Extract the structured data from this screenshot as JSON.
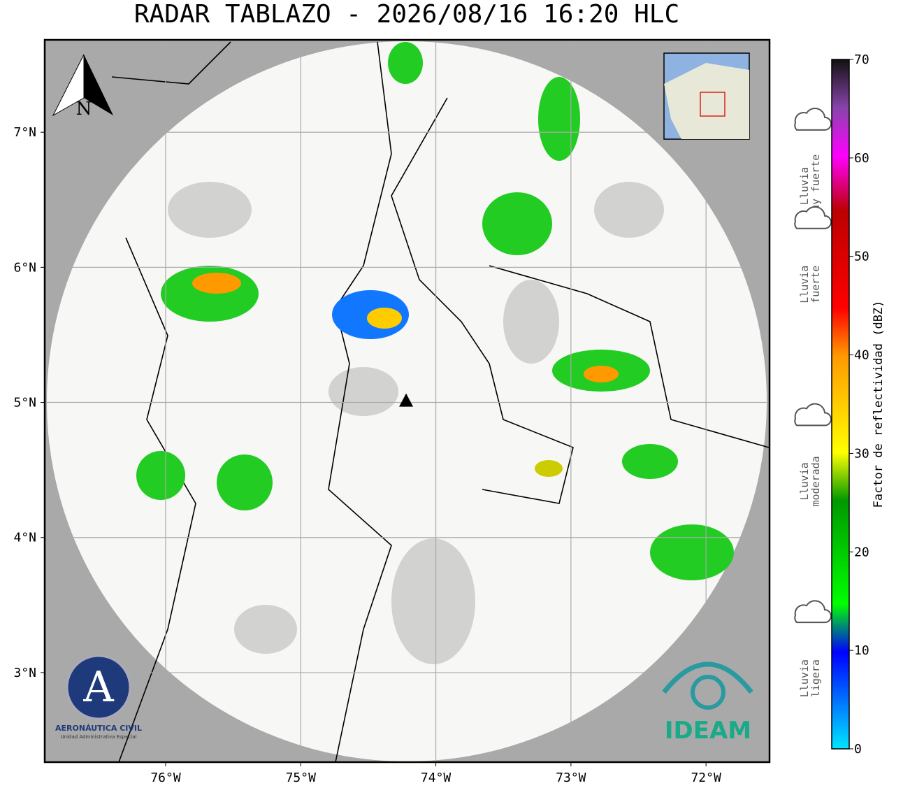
{
  "map": {
    "title": "RADAR TABLAZO - 2026/08/16 16:20 HLC",
    "xlim": [
      -76.895,
      -71.53
    ],
    "ylim": [
      2.337,
      7.684
    ],
    "lon_ticks": [
      {
        "value": -76,
        "label": "76°W"
      },
      {
        "value": -75,
        "label": "75°W"
      },
      {
        "value": -74,
        "label": "74°W"
      },
      {
        "value": -73,
        "label": "73°W"
      },
      {
        "value": -72,
        "label": "72°W"
      }
    ],
    "lat_ticks": [
      {
        "value": 7,
        "label": "7°N"
      },
      {
        "value": 6,
        "label": "6°N"
      },
      {
        "value": 5,
        "label": "5°N"
      },
      {
        "value": 4,
        "label": "4°N"
      },
      {
        "value": 3,
        "label": "3°N"
      }
    ],
    "radar": {
      "lon": -74.22,
      "lat": 5.01
    },
    "north": "N",
    "logo_left": [
      "AERONÁUTICA CIVIL",
      "Unidad Administrativa Especial"
    ],
    "logo_right": "IDEAM"
  },
  "colorbar": {
    "label": "Factor de reflectividad (dBZ)",
    "lim": [
      0,
      70
    ],
    "ticks": [
      0,
      10,
      20,
      30,
      40,
      50,
      60,
      70
    ]
  },
  "legend": [
    {
      "lines": [
        "Lluvia",
        "muy fuerte"
      ],
      "value": 60
    },
    {
      "lines": [
        "Lluvia",
        "fuerte"
      ],
      "value": 50
    },
    {
      "lines": [
        "Lluvia",
        "moderada"
      ],
      "value": 30
    },
    {
      "lines": [
        "Lluvia",
        "ligera"
      ],
      "value": 10
    }
  ]
}
